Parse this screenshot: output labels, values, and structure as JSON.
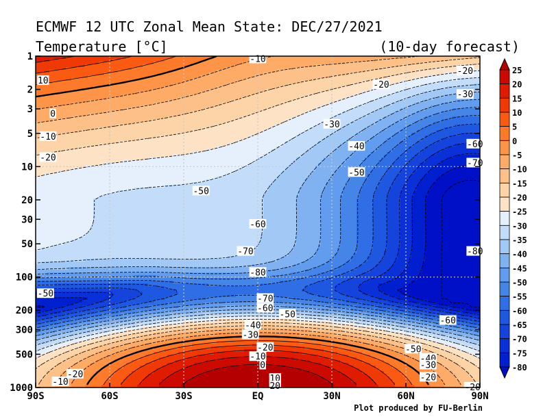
{
  "chart_data": {
    "type": "heatmap",
    "title": "ECMWF 12 UTC Zonal Mean State: DEC/27/2021",
    "subtitle": "Temperature [°C]",
    "subtitle_right": "(10-day forecast)",
    "footer": "Plot produced by FU-Berlin",
    "xlabel": "",
    "ylabel": "",
    "x_tick_labels": [
      "90S",
      "60S",
      "30S",
      "EQ",
      "30N",
      "60N",
      "90N"
    ],
    "y_tick_labels": [
      "1",
      "2",
      "3",
      "5",
      "10",
      "20",
      "30",
      "50",
      "100",
      "200",
      "300",
      "500",
      "1000"
    ],
    "y_scale": "log",
    "y_unit": "hPa",
    "xlim": [
      -90,
      90
    ],
    "ylim": [
      1000,
      1
    ],
    "grid": true,
    "colorbar": {
      "ticks": [
        "25",
        "20",
        "15",
        "10",
        "5",
        "0",
        "-5",
        "-10",
        "-15",
        "-20",
        "-25",
        "-30",
        "-35",
        "-40",
        "-45",
        "-50",
        "-55",
        "-60",
        "-65",
        "-70",
        "-75",
        "-80"
      ],
      "colors": [
        "#b40000",
        "#cc0a00",
        "#e01c00",
        "#f03a05",
        "#fa5a12",
        "#fd7a2a",
        "#fd9448",
        "#fdab66",
        "#fdc088",
        "#fdd3a8",
        "#fde2c6",
        "#e6f0fc",
        "#c3dcfa",
        "#a2c8f6",
        "#80b2f2",
        "#619cee",
        "#4585e8",
        "#2f6ee4",
        "#1f58e0",
        "#1444dc",
        "#0a30d8",
        "#0020d0",
        "#0010c6"
      ]
    },
    "contour_labels": [
      {
        "text": "-10",
        "x": 0,
        "p": 1.05
      },
      {
        "text": "-20",
        "x": 50,
        "p": 1.8
      },
      {
        "text": "-20",
        "x": 84,
        "p": 1.35
      },
      {
        "text": "-30",
        "x": 84,
        "p": 2.2
      },
      {
        "text": "-30",
        "x": 30,
        "p": 4.1
      },
      {
        "text": "-40",
        "x": 40,
        "p": 6.5
      },
      {
        "text": "-50",
        "x": 40,
        "p": 11.2
      },
      {
        "text": "-60",
        "x": 88,
        "p": 6.2
      },
      {
        "text": "-70",
        "x": 88,
        "p": 9.2
      },
      {
        "text": "-50",
        "x": -23,
        "p": 16.5
      },
      {
        "text": "-60",
        "x": 0,
        "p": 33
      },
      {
        "text": "-70",
        "x": -5,
        "p": 58
      },
      {
        "text": "-80",
        "x": 0,
        "p": 90
      },
      {
        "text": "-80",
        "x": 88,
        "p": 58
      },
      {
        "text": "10",
        "x": -87,
        "p": 1.65
      },
      {
        "text": "0",
        "x": -83,
        "p": 3.3
      },
      {
        "text": "-10",
        "x": -85,
        "p": 5.3
      },
      {
        "text": "-20",
        "x": -85,
        "p": 8.2
      },
      {
        "text": "-50",
        "x": -86,
        "p": 140
      },
      {
        "text": "-70",
        "x": 3,
        "p": 155
      },
      {
        "text": "-60",
        "x": 3,
        "p": 190
      },
      {
        "text": "-50",
        "x": 12,
        "p": 215
      },
      {
        "text": "-60",
        "x": 77,
        "p": 245
      },
      {
        "text": "-40",
        "x": -2,
        "p": 270
      },
      {
        "text": "-30",
        "x": -3,
        "p": 330
      },
      {
        "text": "-20",
        "x": 3,
        "p": 430
      },
      {
        "text": "-10",
        "x": 0,
        "p": 520
      },
      {
        "text": "0",
        "x": 2,
        "p": 620
      },
      {
        "text": "10",
        "x": 7,
        "p": 820
      },
      {
        "text": "20",
        "x": 7,
        "p": 960
      },
      {
        "text": "-50",
        "x": 63,
        "p": 445
      },
      {
        "text": "-40",
        "x": 69,
        "p": 540
      },
      {
        "text": "-30",
        "x": 69,
        "p": 620
      },
      {
        "text": "-20",
        "x": 69,
        "p": 800
      },
      {
        "text": "-20",
        "x": -74,
        "p": 750
      },
      {
        "text": "-10",
        "x": -80,
        "p": 880
      },
      {
        "text": "-20",
        "x": 87,
        "p": 985
      }
    ]
  }
}
